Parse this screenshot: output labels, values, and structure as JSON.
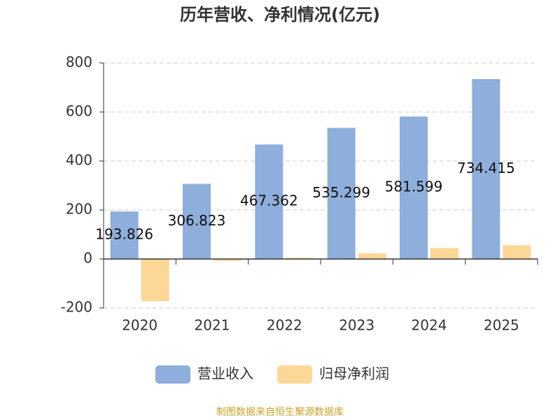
{
  "chart_data": {
    "type": "bar",
    "title": "历年营收、净利情况(亿元)",
    "categories": [
      "2020",
      "2021",
      "2022",
      "2023",
      "2024",
      "2025"
    ],
    "series": [
      {
        "name": "营业收入",
        "color": "#8eaedb",
        "values": [
          193.826,
          306.823,
          467.362,
          535.299,
          581.599,
          734.415
        ]
      },
      {
        "name": "归母净利润",
        "color": "#fdd795",
        "values": [
          -172,
          -8,
          5,
          23,
          45,
          56
        ]
      }
    ],
    "ylim": [
      -200,
      800
    ],
    "yticks": [
      -200,
      0,
      200,
      400,
      600,
      800
    ],
    "grid": true,
    "legend": "bottom",
    "source": "制图数据来自恒生聚源数据库"
  }
}
